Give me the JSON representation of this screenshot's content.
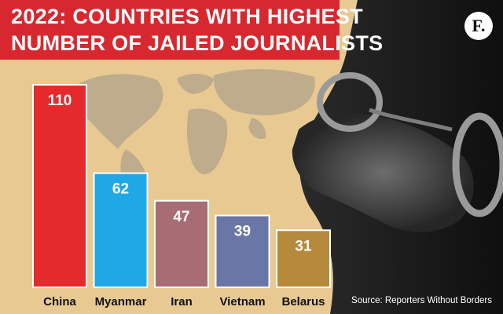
{
  "header": {
    "title_line1": "2022: COUNTRIES WITH HIGHEST",
    "title_line2": "NUMBER OF JAILED JOURNALISTS"
  },
  "logo": {
    "text": "F."
  },
  "source": "Source: Reporters Without Borders",
  "chart_data": {
    "type": "bar",
    "title": "2022: COUNTRIES WITH HIGHEST NUMBER OF JAILED JOURNALISTS",
    "categories": [
      "China",
      "Myanmar",
      "Iran",
      "Vietnam",
      "Belarus"
    ],
    "values": [
      110,
      62,
      47,
      39,
      31
    ],
    "value_labels": [
      "110",
      "62",
      "47",
      "39",
      "31"
    ],
    "bar_colors": [
      "#e42a2c",
      "#1fa8e6",
      "#a86d74",
      "#6a76a6",
      "#b68a3b"
    ],
    "xlabel": "",
    "ylabel": "",
    "ylim": [
      0,
      110
    ],
    "grid": false,
    "legend": "none"
  },
  "colors": {
    "title_band": "#d7282f",
    "background": "#e8c992",
    "map": "#b8a88c",
    "photo_dark": "#1b1b1b"
  }
}
